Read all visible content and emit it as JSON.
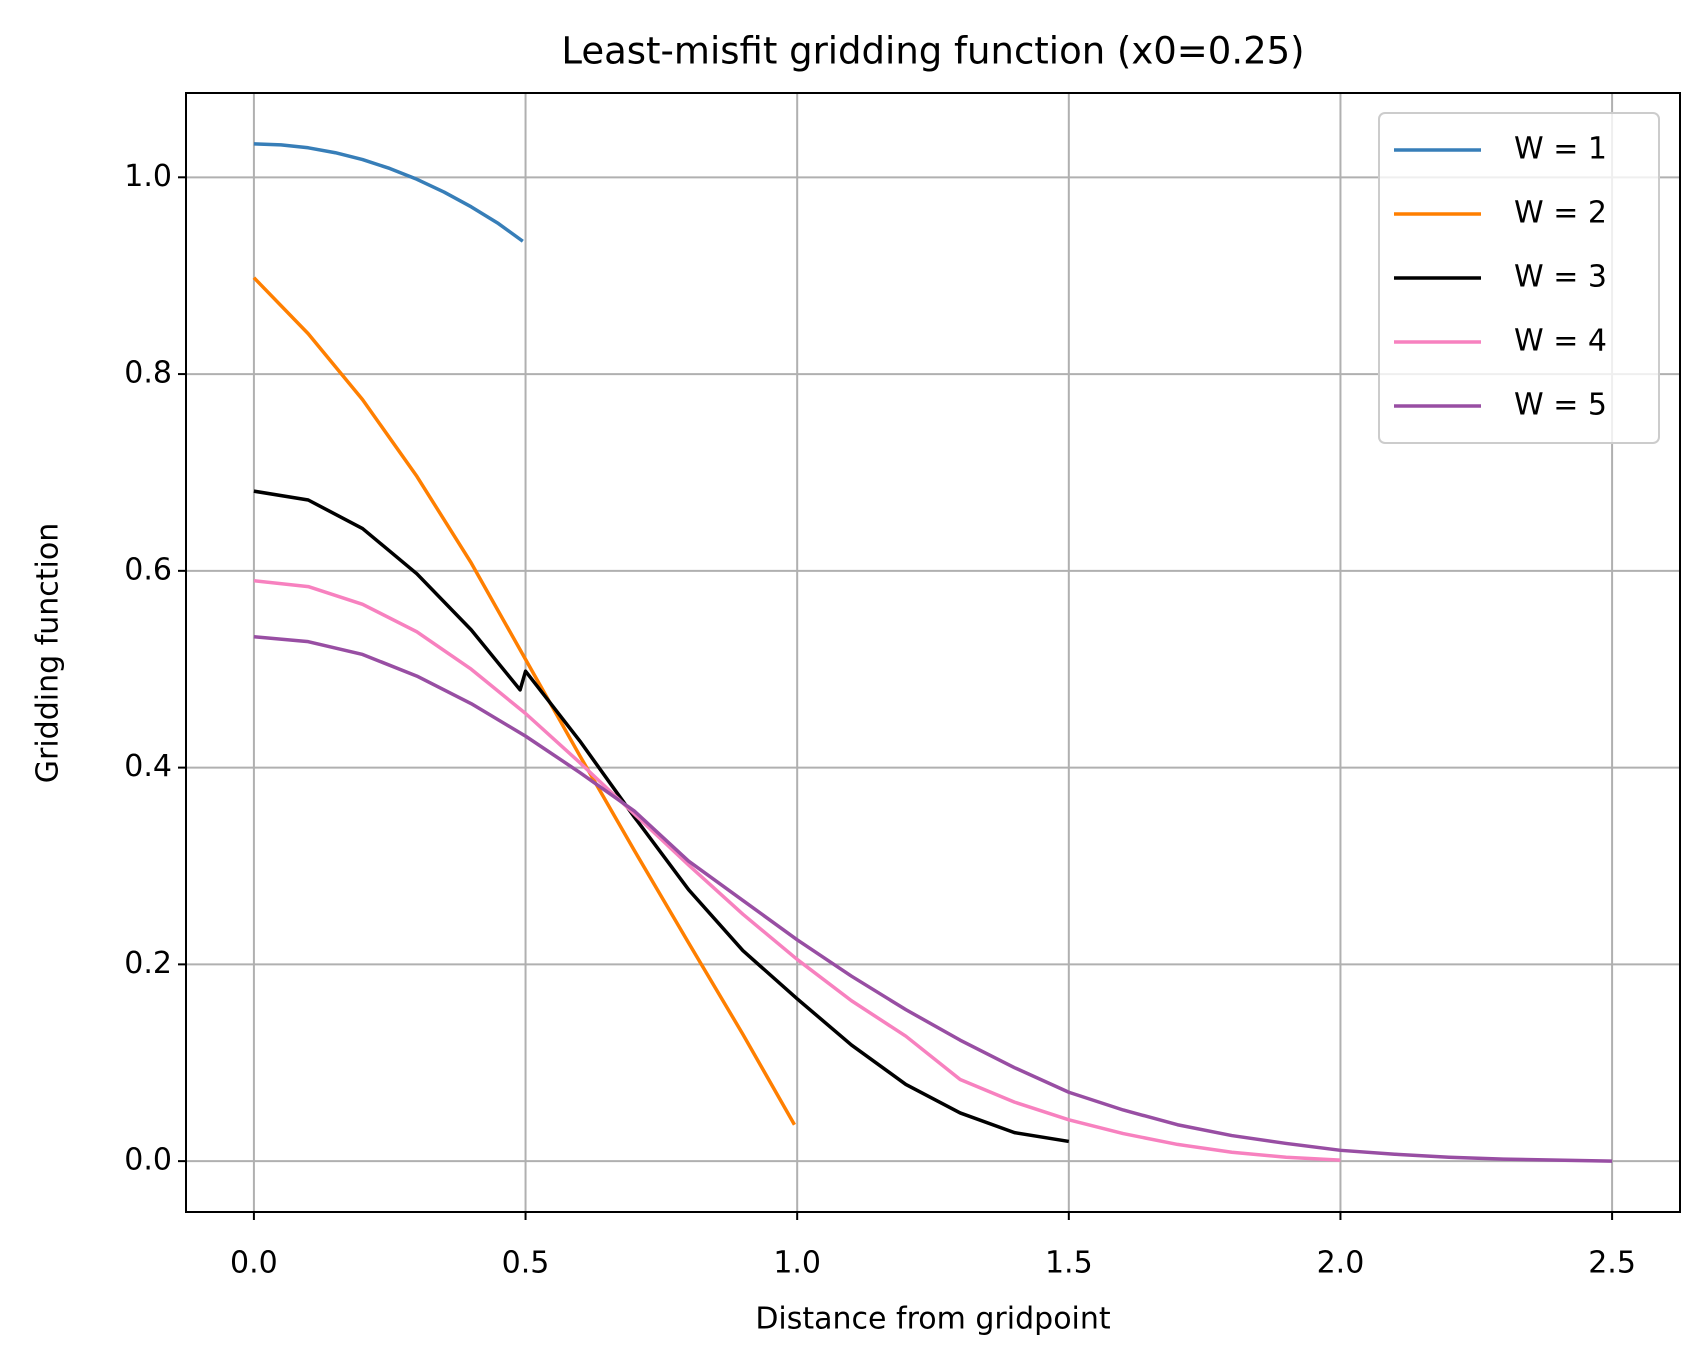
{
  "chart_data": {
    "type": "line",
    "title": "Least-misfit gridding function (x0=0.25)",
    "x_label": "Distance from gridpoint",
    "y_label": "Gridding function",
    "xlim": [
      -0.125,
      2.625
    ],
    "ylim": [
      -0.0517,
      1.0857
    ],
    "xticks": [
      {
        "value": 0,
        "label": "0.0"
      },
      0.5,
      {
        "value": 1,
        "label": "1.0"
      },
      1.5,
      {
        "value": 2,
        "label": "2.0"
      },
      2.5
    ],
    "yticks": [
      {
        "value": 0,
        "label": "0.0"
      },
      0.2,
      0.4,
      0.6,
      0.8,
      {
        "value": 1,
        "label": "1.0"
      }
    ],
    "grid": true,
    "legend": "upper right",
    "series": [
      {
        "name": "W = 1",
        "color": "#377eb8",
        "x": [
          0,
          0.05,
          0.1,
          0.15,
          0.2,
          0.25,
          0.3,
          0.35,
          0.4,
          0.45,
          0.495
        ],
        "values": [
          1.034,
          1.033,
          1.03,
          1.025,
          1.018,
          1.009,
          0.998,
          0.985,
          0.97,
          0.953,
          0.935
        ]
      },
      {
        "name": "W = 2",
        "color": "#ff7f00",
        "x": [
          0,
          0.1,
          0.2,
          0.3,
          0.4,
          0.5,
          0.6,
          0.7,
          0.8,
          0.9,
          0.995
        ],
        "values": [
          0.898,
          0.841,
          0.774,
          0.696,
          0.608,
          0.51,
          0.412,
          0.316,
          0.222,
          0.129,
          0.037
        ]
      },
      {
        "name": "W = 3",
        "color": "#000000",
        "x": [
          0,
          0.1,
          0.2,
          0.3,
          0.4,
          0.49,
          0.5,
          0.6,
          0.7,
          0.8,
          0.9,
          1.0,
          1.1,
          1.2,
          1.3,
          1.4,
          1.5
        ],
        "values": [
          0.681,
          0.672,
          0.643,
          0.597,
          0.54,
          0.479,
          0.498,
          0.427,
          0.35,
          0.276,
          0.214,
          0.165,
          0.118,
          0.078,
          0.049,
          0.029,
          0.02
        ]
      },
      {
        "name": "W = 4",
        "color": "#f781bf",
        "x": [
          0,
          0.1,
          0.2,
          0.3,
          0.4,
          0.5,
          0.6,
          0.7,
          0.8,
          0.9,
          1.0,
          1.1,
          1.2,
          1.3,
          1.4,
          1.5,
          1.6,
          1.7,
          1.8,
          1.9,
          2.0
        ],
        "values": [
          0.59,
          0.584,
          0.566,
          0.538,
          0.5,
          0.455,
          0.405,
          0.353,
          0.301,
          0.251,
          0.205,
          0.163,
          0.127,
          0.083,
          0.06,
          0.042,
          0.028,
          0.017,
          0.009,
          0.004,
          0.001
        ]
      },
      {
        "name": "W = 5",
        "color": "#984ea3",
        "x": [
          0,
          0.1,
          0.2,
          0.3,
          0.4,
          0.5,
          0.6,
          0.7,
          0.8,
          0.9,
          1.0,
          1.1,
          1.2,
          1.3,
          1.4,
          1.5,
          1.6,
          1.7,
          1.8,
          1.9,
          2.0,
          2.1,
          2.2,
          2.3,
          2.4,
          2.5
        ],
        "values": [
          0.533,
          0.528,
          0.515,
          0.493,
          0.465,
          0.432,
          0.395,
          0.356,
          0.305,
          0.265,
          0.225,
          0.188,
          0.154,
          0.123,
          0.095,
          0.07,
          0.052,
          0.037,
          0.026,
          0.018,
          0.011,
          0.007,
          0.004,
          0.002,
          0.001,
          0.0
        ]
      }
    ]
  }
}
